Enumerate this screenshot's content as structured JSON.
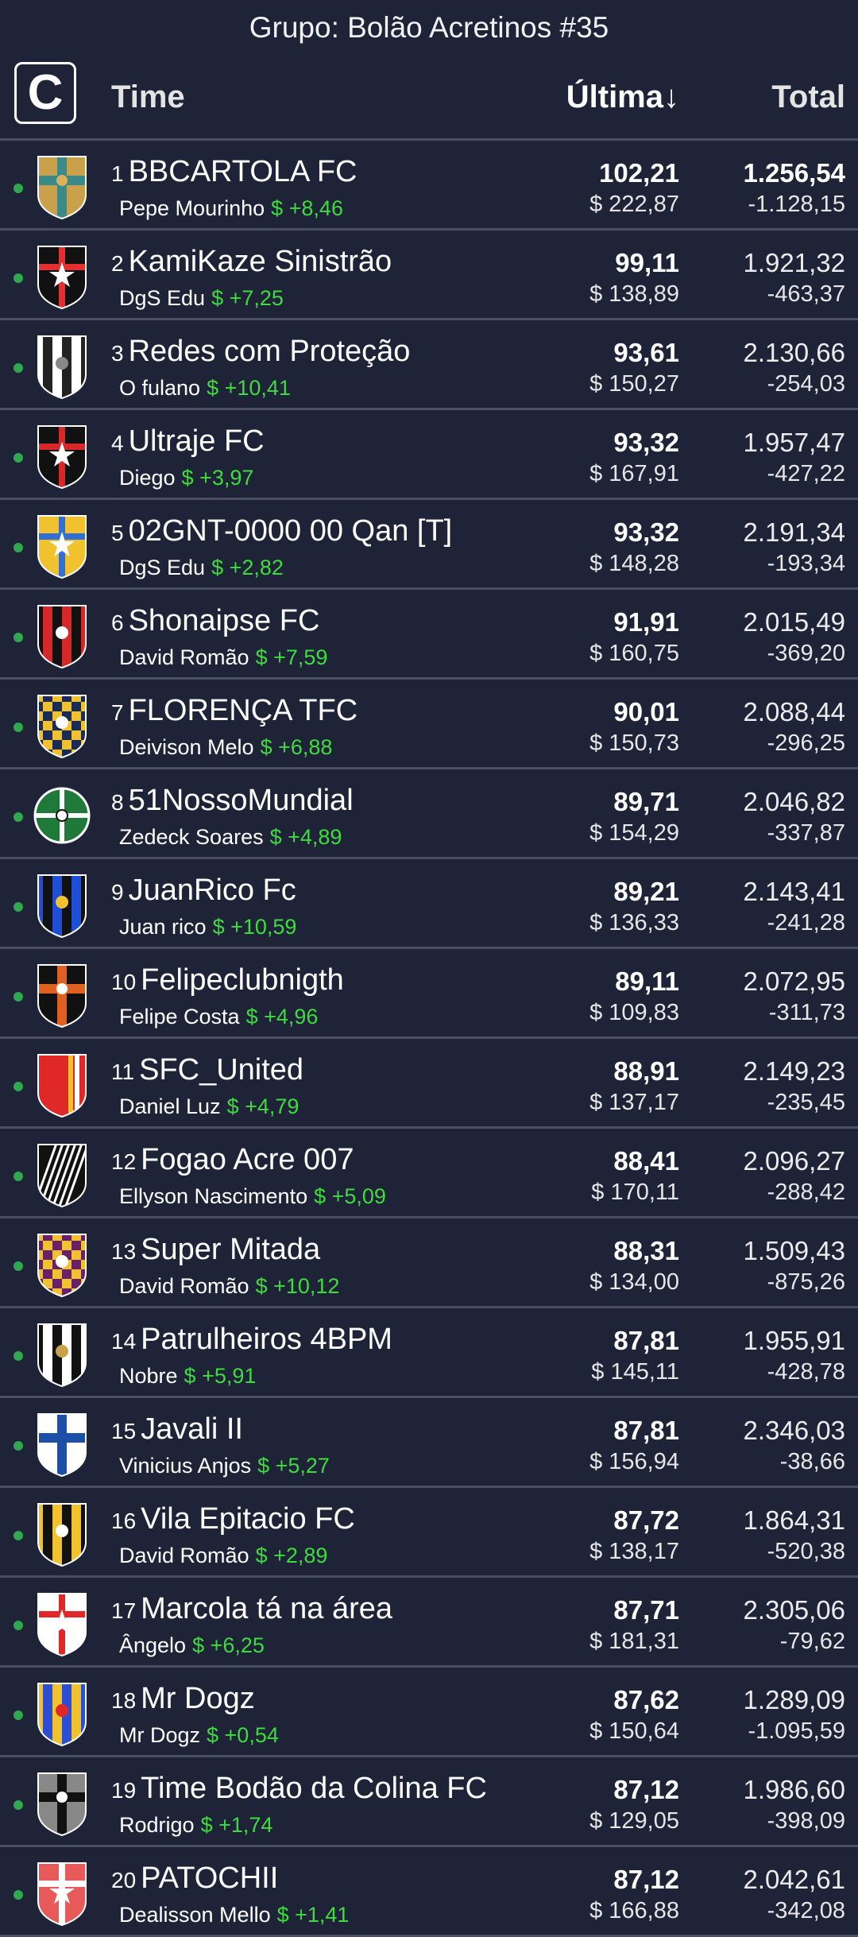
{
  "title": "Grupo: Bolão Acretinos #35",
  "header": {
    "logo_letter": "C",
    "time_label": "Time",
    "ultima_label": "Última↓",
    "total_label": "Total"
  },
  "rows": [
    {
      "rank": "1",
      "team": "BBCARTOLA FC",
      "owner": "Pepe Mourinho",
      "delta": "$ +8,46",
      "ultima": "102,21",
      "price": "$ 222,87",
      "total": "1.256,54",
      "diff": "-1.128,15",
      "emblem": "cross-shield",
      "colors": [
        "#c9a14a",
        "#3a8a8a",
        "#d9b25a"
      ]
    },
    {
      "rank": "2",
      "team": "KamiKaze Sinistrão",
      "owner": "DgS Edu",
      "delta": "$ +7,25",
      "ultima": "99,11",
      "price": "$ 138,89",
      "total": "1.921,32",
      "diff": "-463,37",
      "emblem": "star-shield",
      "colors": [
        "#111111",
        "#e23030",
        "#ffffff"
      ]
    },
    {
      "rank": "3",
      "team": "Redes com Proteção",
      "owner": "O fulano",
      "delta": "$ +10,41",
      "ultima": "93,61",
      "price": "$ 150,27",
      "total": "2.130,66",
      "diff": "-254,03",
      "emblem": "stripes-shield",
      "colors": [
        "#ffffff",
        "#222222",
        "#888888"
      ]
    },
    {
      "rank": "4",
      "team": "Ultraje FC",
      "owner": "Diego",
      "delta": "$ +3,97",
      "ultima": "93,32",
      "price": "$ 167,91",
      "total": "1.957,47",
      "diff": "-427,22",
      "emblem": "star-shield",
      "colors": [
        "#111111",
        "#d62828",
        "#ffffff"
      ]
    },
    {
      "rank": "5",
      "team": "02GNT-0000 00 Qan [T]",
      "owner": "DgS Edu",
      "delta": "$ +2,82",
      "ultima": "93,32",
      "price": "$ 148,28",
      "total": "2.191,34",
      "diff": "-193,34",
      "emblem": "star-shield",
      "colors": [
        "#f2c12e",
        "#2f6fd6",
        "#ffffff"
      ]
    },
    {
      "rank": "6",
      "team": "Shonaipse FC",
      "owner": "David Romão",
      "delta": "$ +7,59",
      "ultima": "91,91",
      "price": "$ 160,75",
      "total": "2.015,49",
      "diff": "-369,20",
      "emblem": "stripes-shield",
      "colors": [
        "#111111",
        "#d62828",
        "#ffffff"
      ]
    },
    {
      "rank": "7",
      "team": "FLORENÇA TFC",
      "owner": "Deivison Melo",
      "delta": "$ +6,88",
      "ultima": "90,01",
      "price": "$ 150,73",
      "total": "2.088,44",
      "diff": "-296,25",
      "emblem": "check-shield",
      "colors": [
        "#f2c12e",
        "#1a2b5a",
        "#ffffff"
      ]
    },
    {
      "rank": "8",
      "team": "51NossoMundial",
      "owner": "Zedeck Soares",
      "delta": "$ +4,89",
      "ultima": "89,71",
      "price": "$ 154,29",
      "total": "2.046,82",
      "diff": "-337,87",
      "emblem": "cross-circle",
      "colors": [
        "#1f7a3a",
        "#ffffff",
        "#ffffff"
      ]
    },
    {
      "rank": "9",
      "team": "JuanRico Fc",
      "owner": "Juan rico",
      "delta": "$ +10,59",
      "ultima": "89,21",
      "price": "$ 136,33",
      "total": "2.143,41",
      "diff": "-241,28",
      "emblem": "stripes-shield",
      "colors": [
        "#1e4fd6",
        "#111111",
        "#f2c12e"
      ]
    },
    {
      "rank": "10",
      "team": "Felipeclubnigth",
      "owner": "Felipe Costa",
      "delta": "$ +4,96",
      "ultima": "89,11",
      "price": "$ 109,83",
      "total": "2.072,95",
      "diff": "-311,73",
      "emblem": "cross-shield",
      "colors": [
        "#111111",
        "#e06020",
        "#ffffff"
      ]
    },
    {
      "rank": "11",
      "team": "SFC_United",
      "owner": "Daniel Luz",
      "delta": "$ +4,79",
      "ultima": "88,91",
      "price": "$ 137,17",
      "total": "2.149,23",
      "diff": "-235,45",
      "emblem": "plain-shield",
      "colors": [
        "#e02828",
        "#f2c12e",
        "#ffffff"
      ]
    },
    {
      "rank": "12",
      "team": "Fogao Acre 007",
      "owner": "Ellyson Nascimento",
      "delta": "$ +5,09",
      "ultima": "88,41",
      "price": "$ 170,11",
      "total": "2.096,27",
      "diff": "-288,42",
      "emblem": "diag-shield",
      "colors": [
        "#111111",
        "#ffffff",
        "#ffffff"
      ]
    },
    {
      "rank": "13",
      "team": "Super Mitada",
      "owner": "David Romão",
      "delta": "$ +10,12",
      "ultima": "88,31",
      "price": "$ 134,00",
      "total": "1.509,43",
      "diff": "-875,26",
      "emblem": "check-shield",
      "colors": [
        "#f2c12e",
        "#6a1f6a",
        "#ffffff"
      ]
    },
    {
      "rank": "14",
      "team": "Patrulheiros 4BPM",
      "owner": "Nobre",
      "delta": "$ +5,91",
      "ultima": "87,81",
      "price": "$ 145,11",
      "total": "1.955,91",
      "diff": "-428,78",
      "emblem": "stripes-shield",
      "colors": [
        "#111111",
        "#ffffff",
        "#c9a14a"
      ]
    },
    {
      "rank": "15",
      "team": "Javali II",
      "owner": "Vinicius Anjos",
      "delta": "$ +5,27",
      "ultima": "87,81",
      "price": "$ 156,94",
      "total": "2.346,03",
      "diff": "-38,66",
      "emblem": "cross-shield",
      "colors": [
        "#ffffff",
        "#1e4fa8",
        "#1e4fa8"
      ]
    },
    {
      "rank": "16",
      "team": "Vila Epitacio FC",
      "owner": "David Romão",
      "delta": "$ +2,89",
      "ultima": "87,72",
      "price": "$ 138,17",
      "total": "1.864,31",
      "diff": "-520,38",
      "emblem": "stripes-shield",
      "colors": [
        "#f2c12e",
        "#111111",
        "#ffffff"
      ]
    },
    {
      "rank": "17",
      "team": "Marcola tá na área",
      "owner": "Ângelo",
      "delta": "$ +6,25",
      "ultima": "87,71",
      "price": "$ 181,31",
      "total": "2.305,06",
      "diff": "-79,62",
      "emblem": "star-shield",
      "colors": [
        "#ffffff",
        "#e02828",
        "#ffffff"
      ]
    },
    {
      "rank": "18",
      "team": "Mr Dogz",
      "owner": "Mr Dogz",
      "delta": "$ +0,54",
      "ultima": "87,62",
      "price": "$ 150,64",
      "total": "1.289,09",
      "diff": "-1.095,59",
      "emblem": "stripes-shield",
      "colors": [
        "#f2c12e",
        "#2a4fd6",
        "#e02828"
      ]
    },
    {
      "rank": "19",
      "team": "Time Bodão da Colina FC",
      "owner": "Rodrigo",
      "delta": "$ +1,74",
      "ultima": "87,12",
      "price": "$ 129,05",
      "total": "1.986,60",
      "diff": "-398,09",
      "emblem": "cross-shield",
      "colors": [
        "#888888",
        "#111111",
        "#ffffff"
      ]
    },
    {
      "rank": "20",
      "team": "PATOCHII",
      "owner": "Dealisson Mello",
      "delta": "$ +1,41",
      "ultima": "87,12",
      "price": "$ 166,88",
      "total": "2.042,61",
      "diff": "-342,08",
      "emblem": "star-shield",
      "colors": [
        "#e85a5a",
        "#ffffff",
        "#ffffff"
      ]
    }
  ]
}
